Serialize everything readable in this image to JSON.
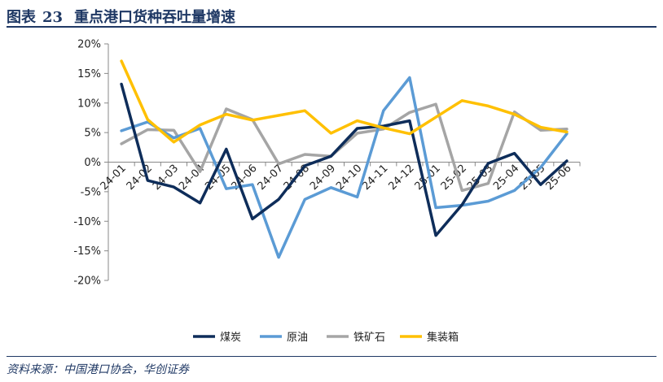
{
  "header": {
    "fig_label": "图表",
    "fig_number": "23",
    "title": "重点港口货种吞吐量增速"
  },
  "source": "资料来源：中国港口协会，华创证券",
  "chart_data": {
    "type": "line",
    "title": "重点港口货种吞吐量增速",
    "x": [
      "24-01",
      "24-02",
      "24-03",
      "24-04",
      "24-05",
      "24-06",
      "24-07",
      "24-08",
      "24-09",
      "24-10",
      "24-11",
      "24-12",
      "25-01",
      "25-02",
      "25-03",
      "25-04",
      "25-05",
      "25-06"
    ],
    "ylim": [
      -20,
      20
    ],
    "yticks": [
      -20,
      -15,
      -10,
      -5,
      0,
      5,
      10,
      15,
      20
    ],
    "ytick_labels": [
      "-20%",
      "-15%",
      "-10%",
      "-5%",
      "0%",
      "5%",
      "10%",
      "15%",
      "20%"
    ],
    "unit": "%",
    "grid": false,
    "legend_position": "bottom",
    "series": [
      {
        "name": "煤炭",
        "color": "#0e2d5a",
        "values": [
          13.2,
          -3.1,
          -4.2,
          -6.9,
          2.2,
          -9.6,
          -6.3,
          -0.6,
          1.0,
          5.7,
          6.1,
          7.0,
          -12.4,
          -7.2,
          -0.2,
          1.5,
          -3.8,
          0.2
        ]
      },
      {
        "name": "原油",
        "color": "#5b9bd5",
        "values": [
          5.3,
          6.8,
          4.1,
          5.7,
          -4.5,
          -3.8,
          -16.1,
          -6.3,
          -4.3,
          -5.9,
          8.7,
          14.3,
          -7.7,
          -7.3,
          -6.6,
          -4.8,
          -0.9,
          4.8
        ]
      },
      {
        "name": "铁矿石",
        "color": "#a5a5a5",
        "values": [
          3.1,
          5.5,
          5.4,
          -1.6,
          9.0,
          7.2,
          -0.3,
          1.3,
          1.0,
          4.9,
          5.6,
          8.4,
          9.8,
          -4.8,
          -3.6,
          8.5,
          5.4,
          5.6
        ]
      },
      {
        "name": "集装箱",
        "color": "#ffc000",
        "values": [
          17.1,
          7.2,
          3.4,
          6.3,
          8.1,
          7.1,
          7.9,
          8.7,
          4.9,
          7.0,
          5.8,
          4.8,
          7.6,
          10.4,
          9.5,
          8.1,
          5.9,
          5.1
        ]
      }
    ]
  }
}
